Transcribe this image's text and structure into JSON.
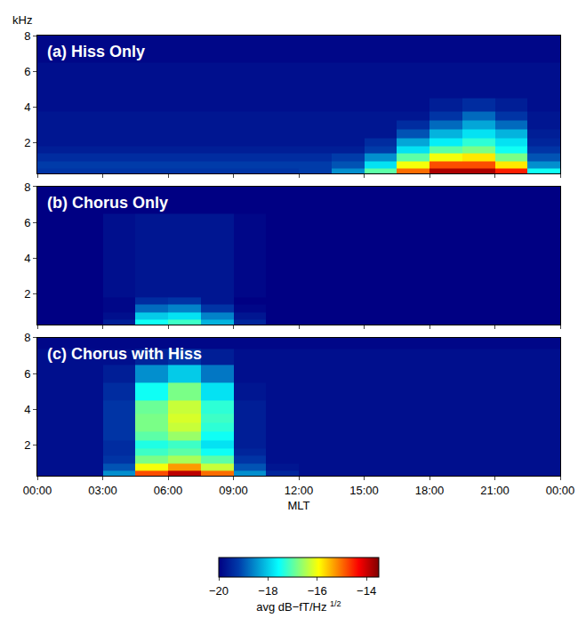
{
  "chart_data": {
    "type": "heatmap",
    "x_label": "MLT",
    "y_label": "kHz",
    "x": [
      0.75,
      2.25,
      3.75,
      5.25,
      6.75,
      8.25,
      9.75,
      11.25,
      12.75,
      14.25,
      15.75,
      17.25,
      18.75,
      20.25,
      21.75,
      23.25
    ],
    "y": [
      0.4,
      0.8,
      1.2,
      1.6,
      2,
      2.5,
      3,
      3.5,
      4,
      5,
      6,
      7,
      7.75
    ],
    "xlim": [
      0,
      24
    ],
    "xticks": [
      {
        "value": 0,
        "label": "00:00"
      },
      {
        "value": 3,
        "label": "03:00"
      },
      {
        "value": 6,
        "label": "06:00"
      },
      {
        "value": 9,
        "label": "09:00"
      },
      {
        "value": 12,
        "label": "12:00"
      },
      {
        "value": 15,
        "label": "15:00"
      },
      {
        "value": 18,
        "label": "18:00"
      },
      {
        "value": 21,
        "label": "21:00"
      },
      {
        "value": 24,
        "label": "00:00"
      }
    ],
    "ylim": [
      0.3,
      8
    ],
    "yticks": [
      2,
      4,
      6,
      8
    ],
    "colorbar": {
      "title": "avg dB−fT/Hz",
      "title_exponent": "1/2",
      "range": [
        -20,
        -13.5
      ],
      "ticks": [
        {
          "value": -20,
          "label": "−20"
        },
        {
          "value": -18,
          "label": "−18"
        },
        {
          "value": -16,
          "label": "−16"
        },
        {
          "value": -14,
          "label": "−14"
        }
      ]
    },
    "panels": [
      {
        "title": "(a) Hiss Only",
        "cells": [
          [
            -19.3,
            -19.3,
            -19.3,
            -19.3,
            -19.3,
            -19.3,
            -19.3,
            -19.3,
            -19.2,
            -18.5,
            -17,
            -15,
            -13.8,
            -13.8,
            -14.5,
            -17.5
          ],
          [
            -19.2,
            -19.2,
            -19.2,
            -19.2,
            -19.2,
            -19.2,
            -19.2,
            -19.2,
            -19.2,
            -19,
            -17.8,
            -16,
            -14.8,
            -14.8,
            -15.8,
            -18.5
          ],
          [
            -19.4,
            -19.4,
            -19.4,
            -19.4,
            -19.4,
            -19.4,
            -19.4,
            -19.4,
            -19.4,
            -19.2,
            -18.5,
            -17,
            -16,
            -15.8,
            -16.8,
            -19
          ],
          [
            -19.6,
            -19.6,
            -19.6,
            -19.6,
            -19.6,
            -19.6,
            -19.6,
            -19.6,
            -19.6,
            -19.6,
            -19.2,
            -17.8,
            -17,
            -16.8,
            -17.5,
            -19.3
          ],
          [
            -19.7,
            -19.7,
            -19.7,
            -19.7,
            -19.7,
            -19.7,
            -19.7,
            -19.7,
            -19.7,
            -19.7,
            -19.4,
            -18.3,
            -17.7,
            -17.3,
            -17.8,
            -19.5
          ],
          [
            -19.7,
            -19.7,
            -19.7,
            -19.7,
            -19.7,
            -19.7,
            -19.7,
            -19.7,
            -19.7,
            -19.7,
            -19.7,
            -19,
            -18.2,
            -17.8,
            -18.2,
            -19.6
          ],
          [
            -19.7,
            -19.7,
            -19.7,
            -19.7,
            -19.7,
            -19.7,
            -19.7,
            -19.7,
            -19.7,
            -19.7,
            -19.7,
            -19.4,
            -18.8,
            -18.3,
            -18.8,
            -19.7
          ],
          [
            -19.7,
            -19.7,
            -19.7,
            -19.7,
            -19.7,
            -19.7,
            -19.7,
            -19.7,
            -19.7,
            -19.7,
            -19.7,
            -19.7,
            -19.3,
            -18.8,
            -19.3,
            -19.7
          ],
          [
            -19.8,
            -19.8,
            -19.8,
            -19.8,
            -19.8,
            -19.8,
            -19.8,
            -19.8,
            -19.8,
            -19.8,
            -19.8,
            -19.8,
            -19.6,
            -19.4,
            -19.6,
            -19.8
          ],
          [
            -19.8,
            -19.8,
            -19.8,
            -19.8,
            -19.8,
            -19.8,
            -19.8,
            -19.8,
            -19.8,
            -19.8,
            -19.8,
            -19.8,
            -19.8,
            -19.8,
            -19.8,
            -19.8
          ],
          [
            -19.8,
            -19.8,
            -19.8,
            -19.8,
            -19.8,
            -19.8,
            -19.8,
            -19.8,
            -19.8,
            -19.8,
            -19.8,
            -19.8,
            -19.8,
            -19.8,
            -19.8,
            -19.8
          ],
          [
            -19.9,
            -19.9,
            -19.9,
            -19.9,
            -19.9,
            -19.9,
            -19.9,
            -19.9,
            -19.9,
            -19.9,
            -19.9,
            -19.9,
            -19.9,
            -19.9,
            -19.9,
            -19.9
          ],
          [
            -19.9,
            -19.9,
            -19.9,
            -19.9,
            -19.9,
            -19.9,
            -19.9,
            -19.9,
            -19.9,
            -19.9,
            -19.9,
            -19.9,
            -19.9,
            -19.9,
            -19.9,
            -19.9
          ]
        ]
      },
      {
        "title": "(b) Chorus Only",
        "cells": [
          [
            -20,
            -20,
            -19.6,
            -17.5,
            -17.2,
            -18.2,
            -19.5,
            -20,
            -20,
            -20,
            -20,
            -20,
            -20,
            -20,
            -20,
            -20
          ],
          [
            -20,
            -20,
            -19.8,
            -18,
            -17.8,
            -18.6,
            -19.7,
            -20,
            -20,
            -20,
            -20,
            -20,
            -20,
            -20,
            -20,
            -20
          ],
          [
            -20,
            -20,
            -19.9,
            -18.8,
            -18.6,
            -19.3,
            -19.9,
            -20,
            -20,
            -20,
            -20,
            -20,
            -20,
            -20,
            -20,
            -20
          ],
          [
            -20,
            -20,
            -19.9,
            -19.4,
            -19.3,
            -19.7,
            -20,
            -20,
            -20,
            -20,
            -20,
            -20,
            -20,
            -20,
            -20,
            -20
          ],
          [
            -20,
            -20,
            -19.8,
            -19.7,
            -19.7,
            -19.7,
            -19.9,
            -20,
            -20,
            -20,
            -20,
            -20,
            -20,
            -20,
            -20,
            -20
          ],
          [
            -20,
            -20,
            -19.8,
            -19.7,
            -19.7,
            -19.7,
            -19.9,
            -20,
            -20,
            -20,
            -20,
            -20,
            -20,
            -20,
            -20,
            -20
          ],
          [
            -20,
            -20,
            -19.8,
            -19.7,
            -19.7,
            -19.7,
            -19.9,
            -20,
            -20,
            -20,
            -20,
            -20,
            -20,
            -20,
            -20,
            -20
          ],
          [
            -20,
            -20,
            -19.8,
            -19.7,
            -19.7,
            -19.7,
            -19.9,
            -20,
            -20,
            -20,
            -20,
            -20,
            -20,
            -20,
            -20,
            -20
          ],
          [
            -20,
            -20,
            -19.8,
            -19.7,
            -19.7,
            -19.7,
            -19.9,
            -20,
            -20,
            -20,
            -20,
            -20,
            -20,
            -20,
            -20,
            -20
          ],
          [
            -20,
            -20,
            -19.8,
            -19.7,
            -19.7,
            -19.7,
            -19.9,
            -20,
            -20,
            -20,
            -20,
            -20,
            -20,
            -20,
            -20,
            -20
          ],
          [
            -20,
            -20,
            -19.8,
            -19.7,
            -19.7,
            -19.7,
            -19.9,
            -20,
            -20,
            -20,
            -20,
            -20,
            -20,
            -20,
            -20,
            -20
          ],
          [
            -20,
            -20,
            -20,
            -20,
            -20,
            -20,
            -20,
            -20,
            -20,
            -20,
            -20,
            -20,
            -20,
            -20,
            -20,
            -20
          ],
          [
            -20,
            -20,
            -20,
            -20,
            -20,
            -20,
            -20,
            -20,
            -20,
            -20,
            -20,
            -20,
            -20,
            -20,
            -20,
            -20
          ]
        ]
      },
      {
        "title": "(c) Chorus with Hiss",
        "cells": [
          [
            -19.8,
            -19.8,
            -18.5,
            -14.8,
            -13.9,
            -15,
            -18.5,
            -19.5,
            -19.8,
            -19.8,
            -19.8,
            -19.8,
            -19.8,
            -19.8,
            -19.8,
            -19.8
          ],
          [
            -19.8,
            -19.8,
            -19,
            -16,
            -15.3,
            -16.3,
            -19,
            -19.7,
            -19.8,
            -19.8,
            -19.8,
            -19.8,
            -19.8,
            -19.8,
            -19.8,
            -19.8
          ],
          [
            -19.8,
            -19.8,
            -19.3,
            -16.8,
            -16.5,
            -17,
            -19.3,
            -19.8,
            -19.8,
            -19.8,
            -19.8,
            -19.8,
            -19.8,
            -19.8,
            -19.8,
            -19.8
          ],
          [
            -19.8,
            -19.8,
            -19.4,
            -17.2,
            -17,
            -17.5,
            -19.5,
            -19.8,
            -19.8,
            -19.8,
            -19.8,
            -19.8,
            -19.8,
            -19.8,
            -19.8,
            -19.8
          ],
          [
            -19.8,
            -19.8,
            -19.4,
            -17.4,
            -17.2,
            -17.8,
            -19.6,
            -19.8,
            -19.8,
            -19.8,
            -19.8,
            -19.8,
            -19.8,
            -19.8,
            -19.8,
            -19.8
          ],
          [
            -19.8,
            -19.8,
            -19.3,
            -17,
            -16.6,
            -17.5,
            -19.6,
            -19.8,
            -19.8,
            -19.8,
            -19.8,
            -19.8,
            -19.8,
            -19.8,
            -19.8,
            -19.8
          ],
          [
            -19.8,
            -19.8,
            -19.3,
            -16.8,
            -16.3,
            -17.3,
            -19.6,
            -19.8,
            -19.8,
            -19.8,
            -19.8,
            -19.8,
            -19.8,
            -19.8,
            -19.8,
            -19.8
          ],
          [
            -19.8,
            -19.8,
            -19.3,
            -16.8,
            -16.2,
            -17.2,
            -19.6,
            -19.8,
            -19.8,
            -19.8,
            -19.8,
            -19.8,
            -19.8,
            -19.8,
            -19.8,
            -19.8
          ],
          [
            -19.8,
            -19.8,
            -19.3,
            -16.9,
            -16.3,
            -17.3,
            -19.6,
            -19.8,
            -19.8,
            -19.8,
            -19.8,
            -19.8,
            -19.8,
            -19.8,
            -19.8,
            -19.8
          ],
          [
            -19.8,
            -19.8,
            -19.4,
            -17.5,
            -16.8,
            -17.8,
            -19.7,
            -19.8,
            -19.8,
            -19.8,
            -19.8,
            -19.8,
            -19.8,
            -19.8,
            -19.8,
            -19.8
          ],
          [
            -19.8,
            -19.8,
            -19.6,
            -18.5,
            -18,
            -18.7,
            -19.8,
            -19.8,
            -19.8,
            -19.8,
            -19.8,
            -19.8,
            -19.8,
            -19.8,
            -19.8,
            -19.8
          ],
          [
            -19.8,
            -19.8,
            -19.8,
            -19.5,
            -19.3,
            -19.6,
            -19.8,
            -19.8,
            -19.8,
            -19.8,
            -19.8,
            -19.8,
            -19.8,
            -19.8,
            -19.8,
            -19.8
          ],
          [
            -19.9,
            -19.9,
            -19.9,
            -19.9,
            -19.9,
            -19.9,
            -19.9,
            -19.9,
            -19.9,
            -19.9,
            -19.9,
            -19.9,
            -19.9,
            -19.9,
            -19.9,
            -19.9
          ]
        ]
      }
    ]
  }
}
